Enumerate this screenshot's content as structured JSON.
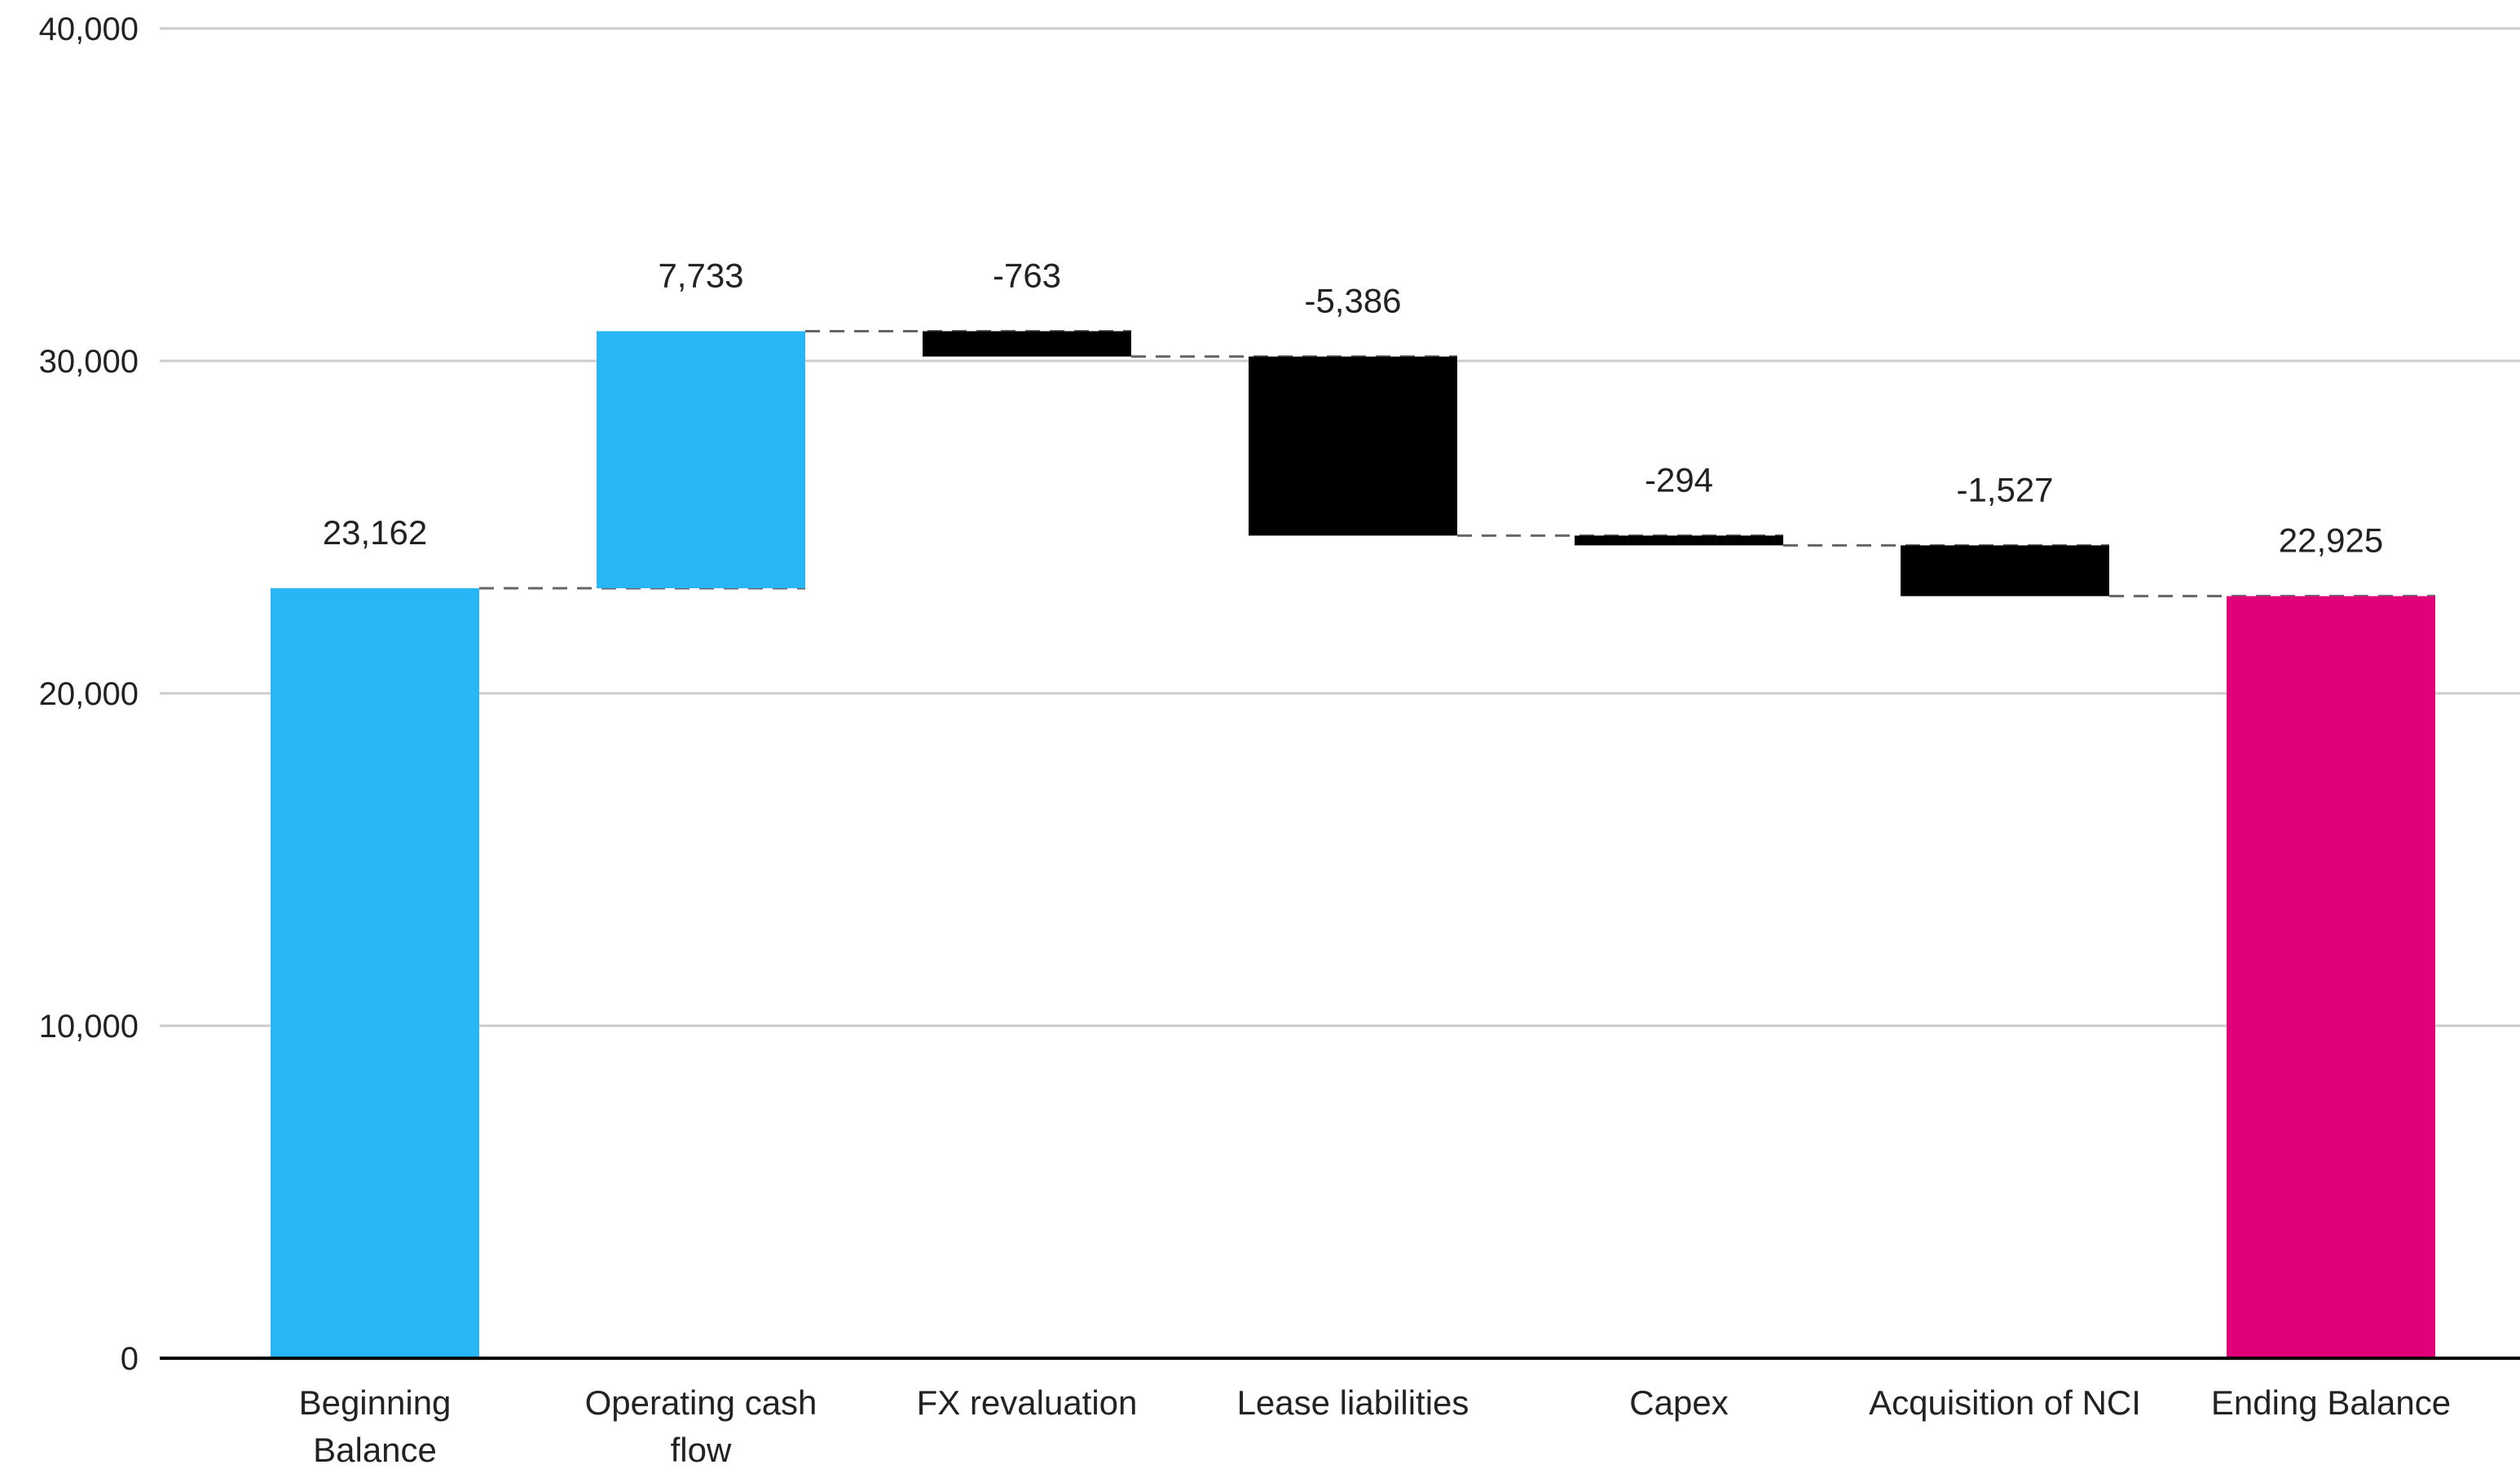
{
  "chart_data": {
    "type": "bar",
    "subtype": "waterfall",
    "title": "",
    "xlabel": "",
    "ylabel": "",
    "ylim": [
      0,
      40000
    ],
    "yticks": [
      0,
      10000,
      20000,
      30000,
      40000
    ],
    "ytick_labels": [
      "0",
      "10,000",
      "20,000",
      "30,000",
      "40,000"
    ],
    "grid": true,
    "legend": "none",
    "connector_lines": "dashed",
    "categories": [
      [
        "Beginning",
        "Balance"
      ],
      [
        "Operating cash",
        "flow"
      ],
      [
        "FX revaluation"
      ],
      [
        "Lease liabilities"
      ],
      [
        "Capex"
      ],
      [
        "Acquisition of NCI"
      ],
      [
        "Ending Balance"
      ]
    ],
    "values": [
      23162,
      7733,
      -763,
      -5386,
      -294,
      -1527,
      22925
    ],
    "data_labels": [
      "23,162",
      "7,733",
      "-763",
      "-5,386",
      "-294",
      "-1,527",
      "22,925"
    ],
    "kinds": [
      "total",
      "change",
      "change",
      "change",
      "change",
      "change",
      "total"
    ],
    "colors": {
      "total_start": "#29B6F6",
      "increase": "#29B6F6",
      "decrease": "#000000",
      "total_end": "#E0007A",
      "grid": "#cccccc",
      "axis": "#000000",
      "connector": "#666666"
    }
  }
}
